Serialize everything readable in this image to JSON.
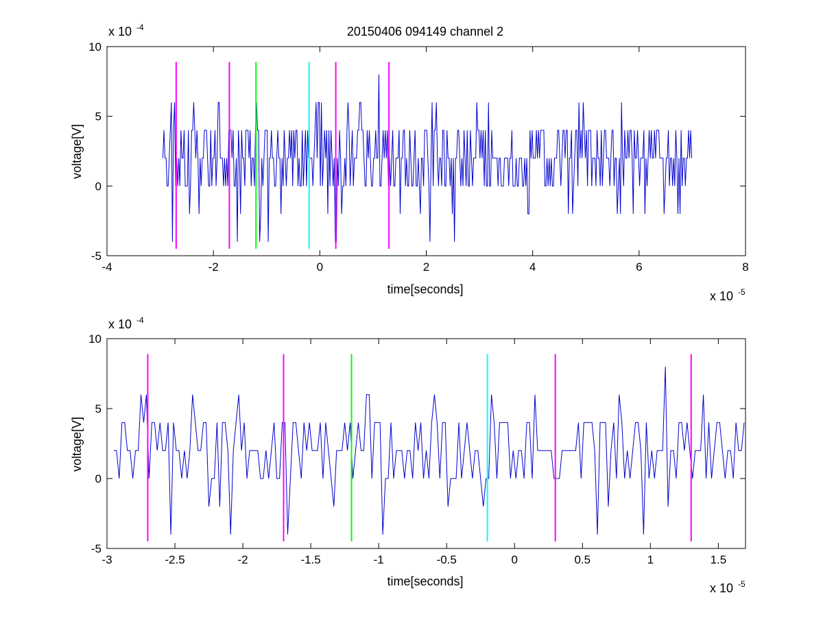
{
  "window": {
    "title": "20150406 094149 channel 2"
  },
  "chart_data": [
    {
      "type": "line",
      "title": "20150406 094149 channel 2",
      "xlabel": "time[seconds]",
      "ylabel": "voltage[V]",
      "xlim": [
        -4,
        8
      ],
      "ylim": [
        -5,
        10
      ],
      "x_ticks": [
        -4,
        -2,
        0,
        2,
        4,
        6,
        8
      ],
      "x_tick_labels": [
        "-4",
        "-2",
        "0",
        "2",
        "4",
        "6",
        "8"
      ],
      "y_ticks": [
        -5,
        0,
        5,
        10
      ],
      "y_tick_labels": [
        "-5",
        "0",
        "5",
        "10"
      ],
      "x_exponent_label": "x 10",
      "x_exponent": "-5",
      "y_exponent_label": "x 10",
      "y_exponent": "-4",
      "grid": false,
      "legend": "none",
      "signal": {
        "color": "#0000cc",
        "x_start": -2.95,
        "x_end": 7.0,
        "x_step": 0.02,
        "typical_values": [
          0,
          2,
          4
        ],
        "peak_values": [
          6,
          8
        ],
        "trough_values": [
          -2,
          -4
        ]
      },
      "markers": [
        {
          "x": -2.7,
          "color": "#ff00ff",
          "y_range": [
            -4.5,
            8.9
          ]
        },
        {
          "x": -1.7,
          "color": "#ff00ff",
          "y_range": [
            -4.5,
            8.9
          ]
        },
        {
          "x": -1.2,
          "color": "#00ff00",
          "y_range": [
            -4.5,
            8.9
          ]
        },
        {
          "x": -0.2,
          "color": "#00ffff",
          "y_range": [
            -4.5,
            8.9
          ]
        },
        {
          "x": 0.3,
          "color": "#ff00ff",
          "y_range": [
            -4.5,
            8.9
          ]
        },
        {
          "x": 1.3,
          "color": "#ff00ff",
          "y_range": [
            -4.5,
            8.9
          ]
        }
      ],
      "notable_points": [
        {
          "x": -2.38,
          "y": 6
        },
        {
          "x": -0.98,
          "y": -4
        },
        {
          "x": 0.78,
          "y": 6
        },
        {
          "x": 1.12,
          "y": 8
        },
        {
          "x": 2.18,
          "y": 6
        },
        {
          "x": 3.18,
          "y": 6
        },
        {
          "x": 4.95,
          "y": 6
        },
        {
          "x": 5.68,
          "y": 6
        },
        {
          "x": 6.78,
          "y": -2
        }
      ]
    },
    {
      "type": "line",
      "title": "",
      "xlabel": "time[seconds]",
      "ylabel": "voltage[V]",
      "xlim": [
        -3.0,
        1.7
      ],
      "ylim": [
        -5,
        10
      ],
      "x_ticks": [
        -3,
        -2.5,
        -2,
        -1.5,
        -1,
        -0.5,
        0,
        0.5,
        1,
        1.5
      ],
      "x_tick_labels": [
        "-3",
        "-2.5",
        "-2",
        "-1.5",
        "-1",
        "-0.5",
        "0",
        "0.5",
        "1",
        "1.5"
      ],
      "y_ticks": [
        -5,
        0,
        5,
        10
      ],
      "y_tick_labels": [
        "-5",
        "0",
        "5",
        "10"
      ],
      "x_exponent_label": "x 10",
      "x_exponent": "-5",
      "y_exponent_label": "x 10",
      "y_exponent": "-4",
      "grid": false,
      "legend": "none",
      "signal": {
        "color": "#0000cc",
        "x_start": -2.95,
        "x_end": 1.7,
        "x_step": 0.02,
        "typical_values": [
          0,
          2,
          4
        ],
        "peak_values": [
          6,
          8
        ],
        "trough_values": [
          -2,
          -4
        ]
      },
      "markers": [
        {
          "x": -2.7,
          "color": "#ff00ff",
          "y_range": [
            -4.5,
            8.9
          ]
        },
        {
          "x": -1.7,
          "color": "#ff00ff",
          "y_range": [
            -4.5,
            8.9
          ]
        },
        {
          "x": -1.2,
          "color": "#00ff00",
          "y_range": [
            -4.5,
            8.9
          ]
        },
        {
          "x": -0.2,
          "color": "#00ffff",
          "y_range": [
            -4.5,
            8.9
          ]
        },
        {
          "x": 0.3,
          "color": "#ff00ff",
          "y_range": [
            -4.5,
            8.9
          ]
        },
        {
          "x": 1.3,
          "color": "#ff00ff",
          "y_range": [
            -4.5,
            8.9
          ]
        }
      ],
      "notable_points": [
        {
          "x": -2.38,
          "y": 6
        },
        {
          "x": -2.16,
          "y": -2
        },
        {
          "x": -1.32,
          "y": -2
        },
        {
          "x": -0.98,
          "y": -4
        },
        {
          "x": -0.5,
          "y": -2
        },
        {
          "x": 0.15,
          "y": 6
        },
        {
          "x": 0.78,
          "y": 6
        },
        {
          "x": 1.12,
          "y": 8
        }
      ]
    }
  ]
}
